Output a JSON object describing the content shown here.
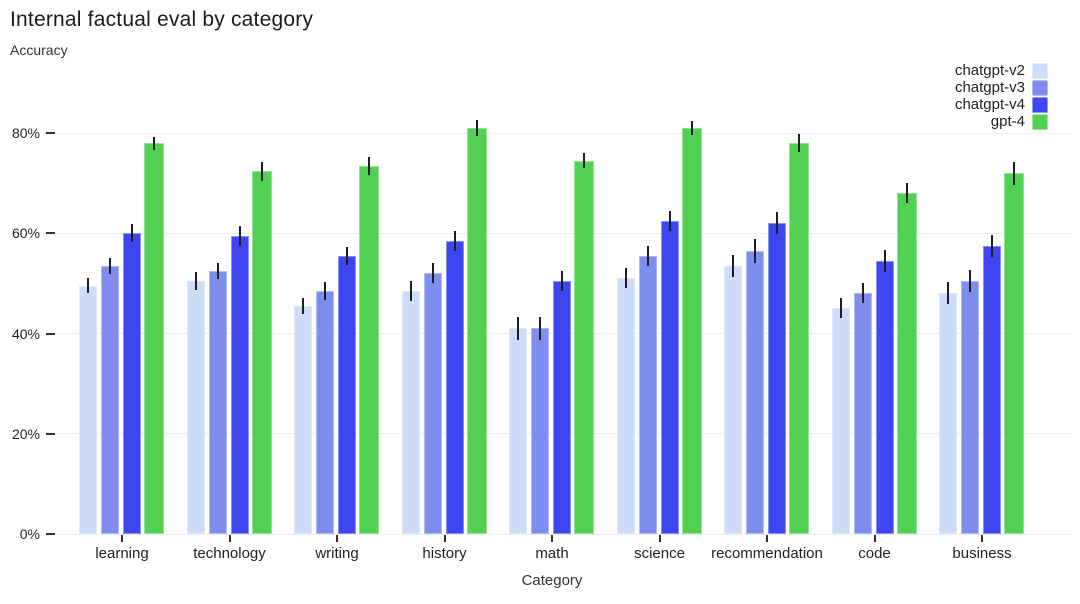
{
  "page": {
    "background": "#ffffff"
  },
  "chart_data": {
    "type": "bar",
    "title": "Internal factual eval by category",
    "ylabel": "Accuracy",
    "xlabel": "Category",
    "categories": [
      "learning",
      "technology",
      "writing",
      "history",
      "math",
      "science",
      "recommendation",
      "code",
      "business"
    ],
    "series": [
      {
        "name": "chatgpt-v2",
        "color": "#cdddf9",
        "values": [
          49.5,
          50.5,
          45.5,
          48.5,
          41.0,
          51.0,
          53.5,
          45.0,
          48.0
        ],
        "errors": [
          1.5,
          1.8,
          1.6,
          2.0,
          2.2,
          2.0,
          2.2,
          2.0,
          2.2
        ]
      },
      {
        "name": "chatgpt-v3",
        "color": "#7d8eee",
        "values": [
          53.5,
          52.5,
          48.5,
          52.0,
          41.0,
          55.5,
          56.5,
          48.0,
          50.5
        ],
        "errors": [
          1.6,
          1.6,
          1.8,
          2.0,
          2.2,
          2.0,
          2.4,
          2.0,
          2.2
        ]
      },
      {
        "name": "chatgpt-v4",
        "color": "#3d46f0",
        "values": [
          60.0,
          59.5,
          55.5,
          58.5,
          50.5,
          62.5,
          62.0,
          54.5,
          57.5
        ],
        "errors": [
          1.8,
          2.0,
          1.8,
          2.0,
          2.0,
          2.0,
          2.2,
          2.2,
          2.2
        ]
      },
      {
        "name": "gpt-4",
        "color": "#52d053",
        "values": [
          78.0,
          72.4,
          73.4,
          81.0,
          74.5,
          81.0,
          78.0,
          68.0,
          72.0
        ],
        "errors": [
          1.3,
          1.9,
          1.8,
          1.5,
          1.5,
          1.3,
          1.8,
          2.0,
          2.3
        ]
      }
    ],
    "y_ticks": [
      {
        "value": 0,
        "label": "0%"
      },
      {
        "value": 20,
        "label": "20%"
      },
      {
        "value": 40,
        "label": "40%"
      },
      {
        "value": 60,
        "label": "60%"
      },
      {
        "value": 80,
        "label": "80%"
      }
    ],
    "ylim": [
      0,
      86
    ],
    "grid": true,
    "error_bars": true,
    "legend_position": "top-right",
    "error_bar_color": "#1e1e1e"
  }
}
